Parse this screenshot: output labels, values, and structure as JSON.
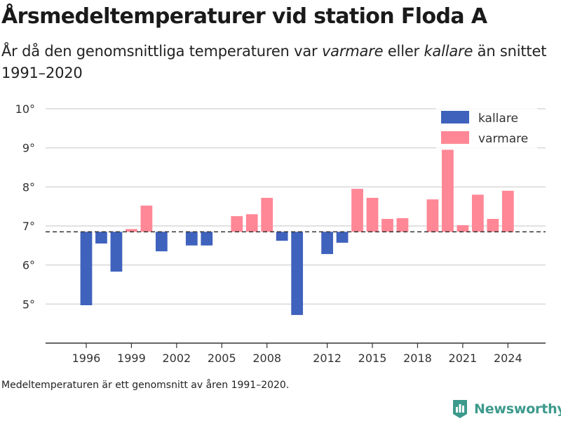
{
  "header": {
    "title": "Årsmedeltemperaturer vid station Floda A",
    "subtitle_parts": [
      "År då den genomsnittliga temperaturen var ",
      "varmare",
      " eller ",
      "kallare",
      " än snittet 1991–2020"
    ]
  },
  "footnote": "Medeltemperaturen är ett genomsnitt av åren 1991–2020.",
  "brand": {
    "name": "Newsworthy",
    "icon": "newsworthy-logo-icon",
    "color": "#3d9a8c"
  },
  "colors": {
    "kallare": "#3f62bd",
    "varmare": "#ff8796",
    "reference": "#333333",
    "grid": "#d9d9d9",
    "axis": "#333333"
  },
  "chart_data": {
    "type": "bar",
    "title": "Årsmedeltemperaturer vid station Floda A",
    "baseline": 6.85,
    "baseline_style": "dashed",
    "x": [
      1996,
      1997,
      1998,
      1999,
      2000,
      2001,
      2003,
      2004,
      2006,
      2007,
      2008,
      2009,
      2010,
      2012,
      2013,
      2014,
      2015,
      2016,
      2017,
      2019,
      2020,
      2021,
      2022,
      2023,
      2024
    ],
    "values": [
      4.97,
      6.55,
      5.83,
      6.92,
      7.52,
      6.35,
      6.5,
      6.5,
      7.25,
      7.3,
      7.72,
      6.62,
      4.72,
      6.28,
      6.57,
      7.95,
      7.72,
      7.18,
      7.2,
      7.68,
      8.95,
      7.02,
      7.8,
      7.18,
      7.9
    ],
    "series_names": [
      "kallare",
      "varmare"
    ],
    "x_ticks": [
      1996,
      1999,
      2002,
      2005,
      2008,
      2012,
      2015,
      2018,
      2021,
      2024
    ],
    "y_ticks": [
      5,
      6,
      7,
      8,
      9,
      10
    ],
    "y_tick_labels": [
      "5°",
      "6°",
      "7°",
      "8°",
      "9°",
      "10°"
    ],
    "xlim": [
      1993.3,
      2026.5
    ],
    "ylim": [
      4.0,
      10.0
    ],
    "grid": true,
    "legend": {
      "entries": [
        "kallare",
        "varmare"
      ],
      "placement": "top-right"
    }
  }
}
